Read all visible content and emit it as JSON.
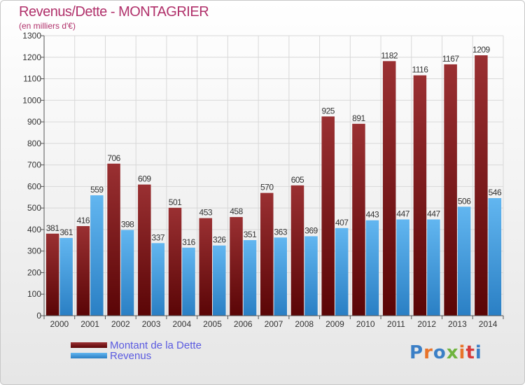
{
  "title": "Revenus/Dette - MONTAGRIER",
  "subtitle": "(en milliers d'€)",
  "legend": {
    "dette_label": "Montant de la Dette",
    "revenus_label": "Revenus"
  },
  "logo": {
    "text": "Proxiti",
    "letters": [
      "P",
      "r",
      "o",
      "x",
      "i",
      "t",
      "i"
    ],
    "colors": [
      "#3b7fc6",
      "#e8732a",
      "#3b7fc6",
      "#6fb43f",
      "#e8732a",
      "#d73a3a",
      "#3b7fc6"
    ]
  },
  "colors": {
    "dette": "#7b1618",
    "revenus": "#4aa3e6",
    "title": "#b0306a",
    "legend_text": "#5a5ae0"
  },
  "chart_data": {
    "type": "bar",
    "categories": [
      "2000",
      "2001",
      "2002",
      "2003",
      "2004",
      "2005",
      "2006",
      "2007",
      "2008",
      "2009",
      "2010",
      "2011",
      "2012",
      "2013",
      "2014"
    ],
    "series": [
      {
        "name": "Montant de la Dette",
        "values": [
          381,
          416,
          706,
          609,
          501,
          453,
          458,
          570,
          605,
          925,
          891,
          1182,
          1116,
          1167,
          1209
        ]
      },
      {
        "name": "Revenus",
        "values": [
          361,
          559,
          398,
          337,
          316,
          326,
          351,
          363,
          369,
          407,
          443,
          447,
          447,
          506,
          546
        ]
      }
    ],
    "ylim": [
      0,
      1300
    ],
    "ytick_step": 100,
    "grid": true,
    "legend_position": "bottom-left"
  }
}
